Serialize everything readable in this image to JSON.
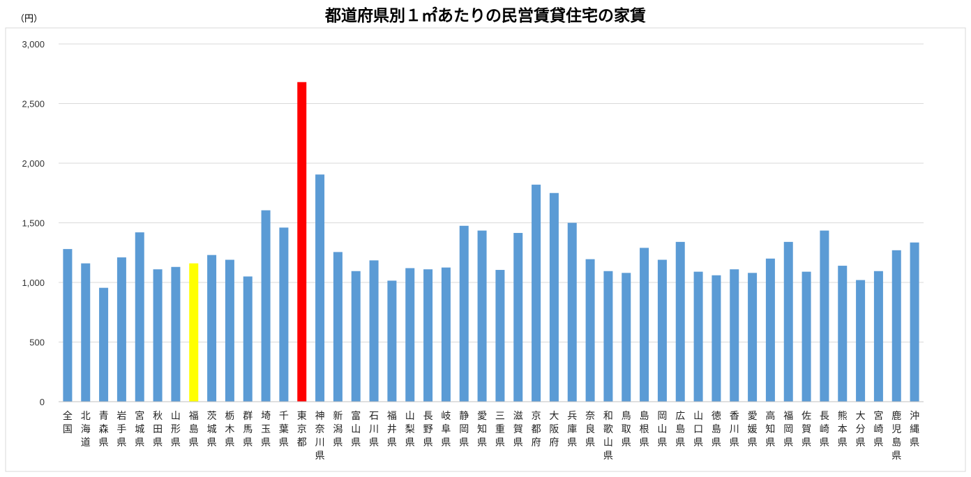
{
  "chart_data": {
    "type": "bar",
    "title": "都道府県別１㎡あたりの民営賃貸住宅の家賃",
    "unit_label": "（円）",
    "ylim": [
      0,
      3000
    ],
    "yticks": [
      0,
      500,
      1000,
      1500,
      2000,
      2500,
      3000
    ],
    "ytick_labels": [
      "0",
      "500",
      "1,000",
      "1,500",
      "2,000",
      "2,500",
      "3,000"
    ],
    "grid": true,
    "legend": "none",
    "categories": [
      "全国",
      "北海道",
      "青森県",
      "岩手県",
      "宮城県",
      "秋田県",
      "山形県",
      "福島県",
      "茨城県",
      "栃木県",
      "群馬県",
      "埼玉県",
      "千葉県",
      "東京都",
      "神奈川県",
      "新潟県",
      "富山県",
      "石川県",
      "福井県",
      "山梨県",
      "長野県",
      "岐阜県",
      "静岡県",
      "愛知県",
      "三重県",
      "滋賀県",
      "京都府",
      "大阪府",
      "兵庫県",
      "奈良県",
      "和歌山県",
      "鳥取県",
      "島根県",
      "岡山県",
      "広島県",
      "山口県",
      "徳島県",
      "香川県",
      "愛媛県",
      "高知県",
      "福岡県",
      "佐賀県",
      "長崎県",
      "熊本県",
      "大分県",
      "宮崎県",
      "鹿児島県",
      "沖縄県"
    ],
    "values": [
      1280,
      1160,
      955,
      1210,
      1420,
      1110,
      1130,
      1160,
      1230,
      1190,
      1050,
      1605,
      1460,
      2680,
      1905,
      1255,
      1095,
      1185,
      1015,
      1120,
      1110,
      1125,
      1475,
      1435,
      1105,
      1415,
      1820,
      1750,
      1500,
      1195,
      1095,
      1080,
      1290,
      1190,
      1340,
      1090,
      1060,
      1110,
      1080,
      1200,
      1340,
      1090,
      1435,
      1140,
      1020,
      1095,
      1270,
      1335
    ],
    "colors": {
      "default": "#5b9bd5",
      "highlight_fukushima": "#ffff00",
      "highlight_tokyo": "#ff0000",
      "grid": "#d9d9d9",
      "axis": "#bfbfbf"
    },
    "highlights": {
      "福島県": "#ffff00",
      "東京都": "#ff0000"
    }
  }
}
